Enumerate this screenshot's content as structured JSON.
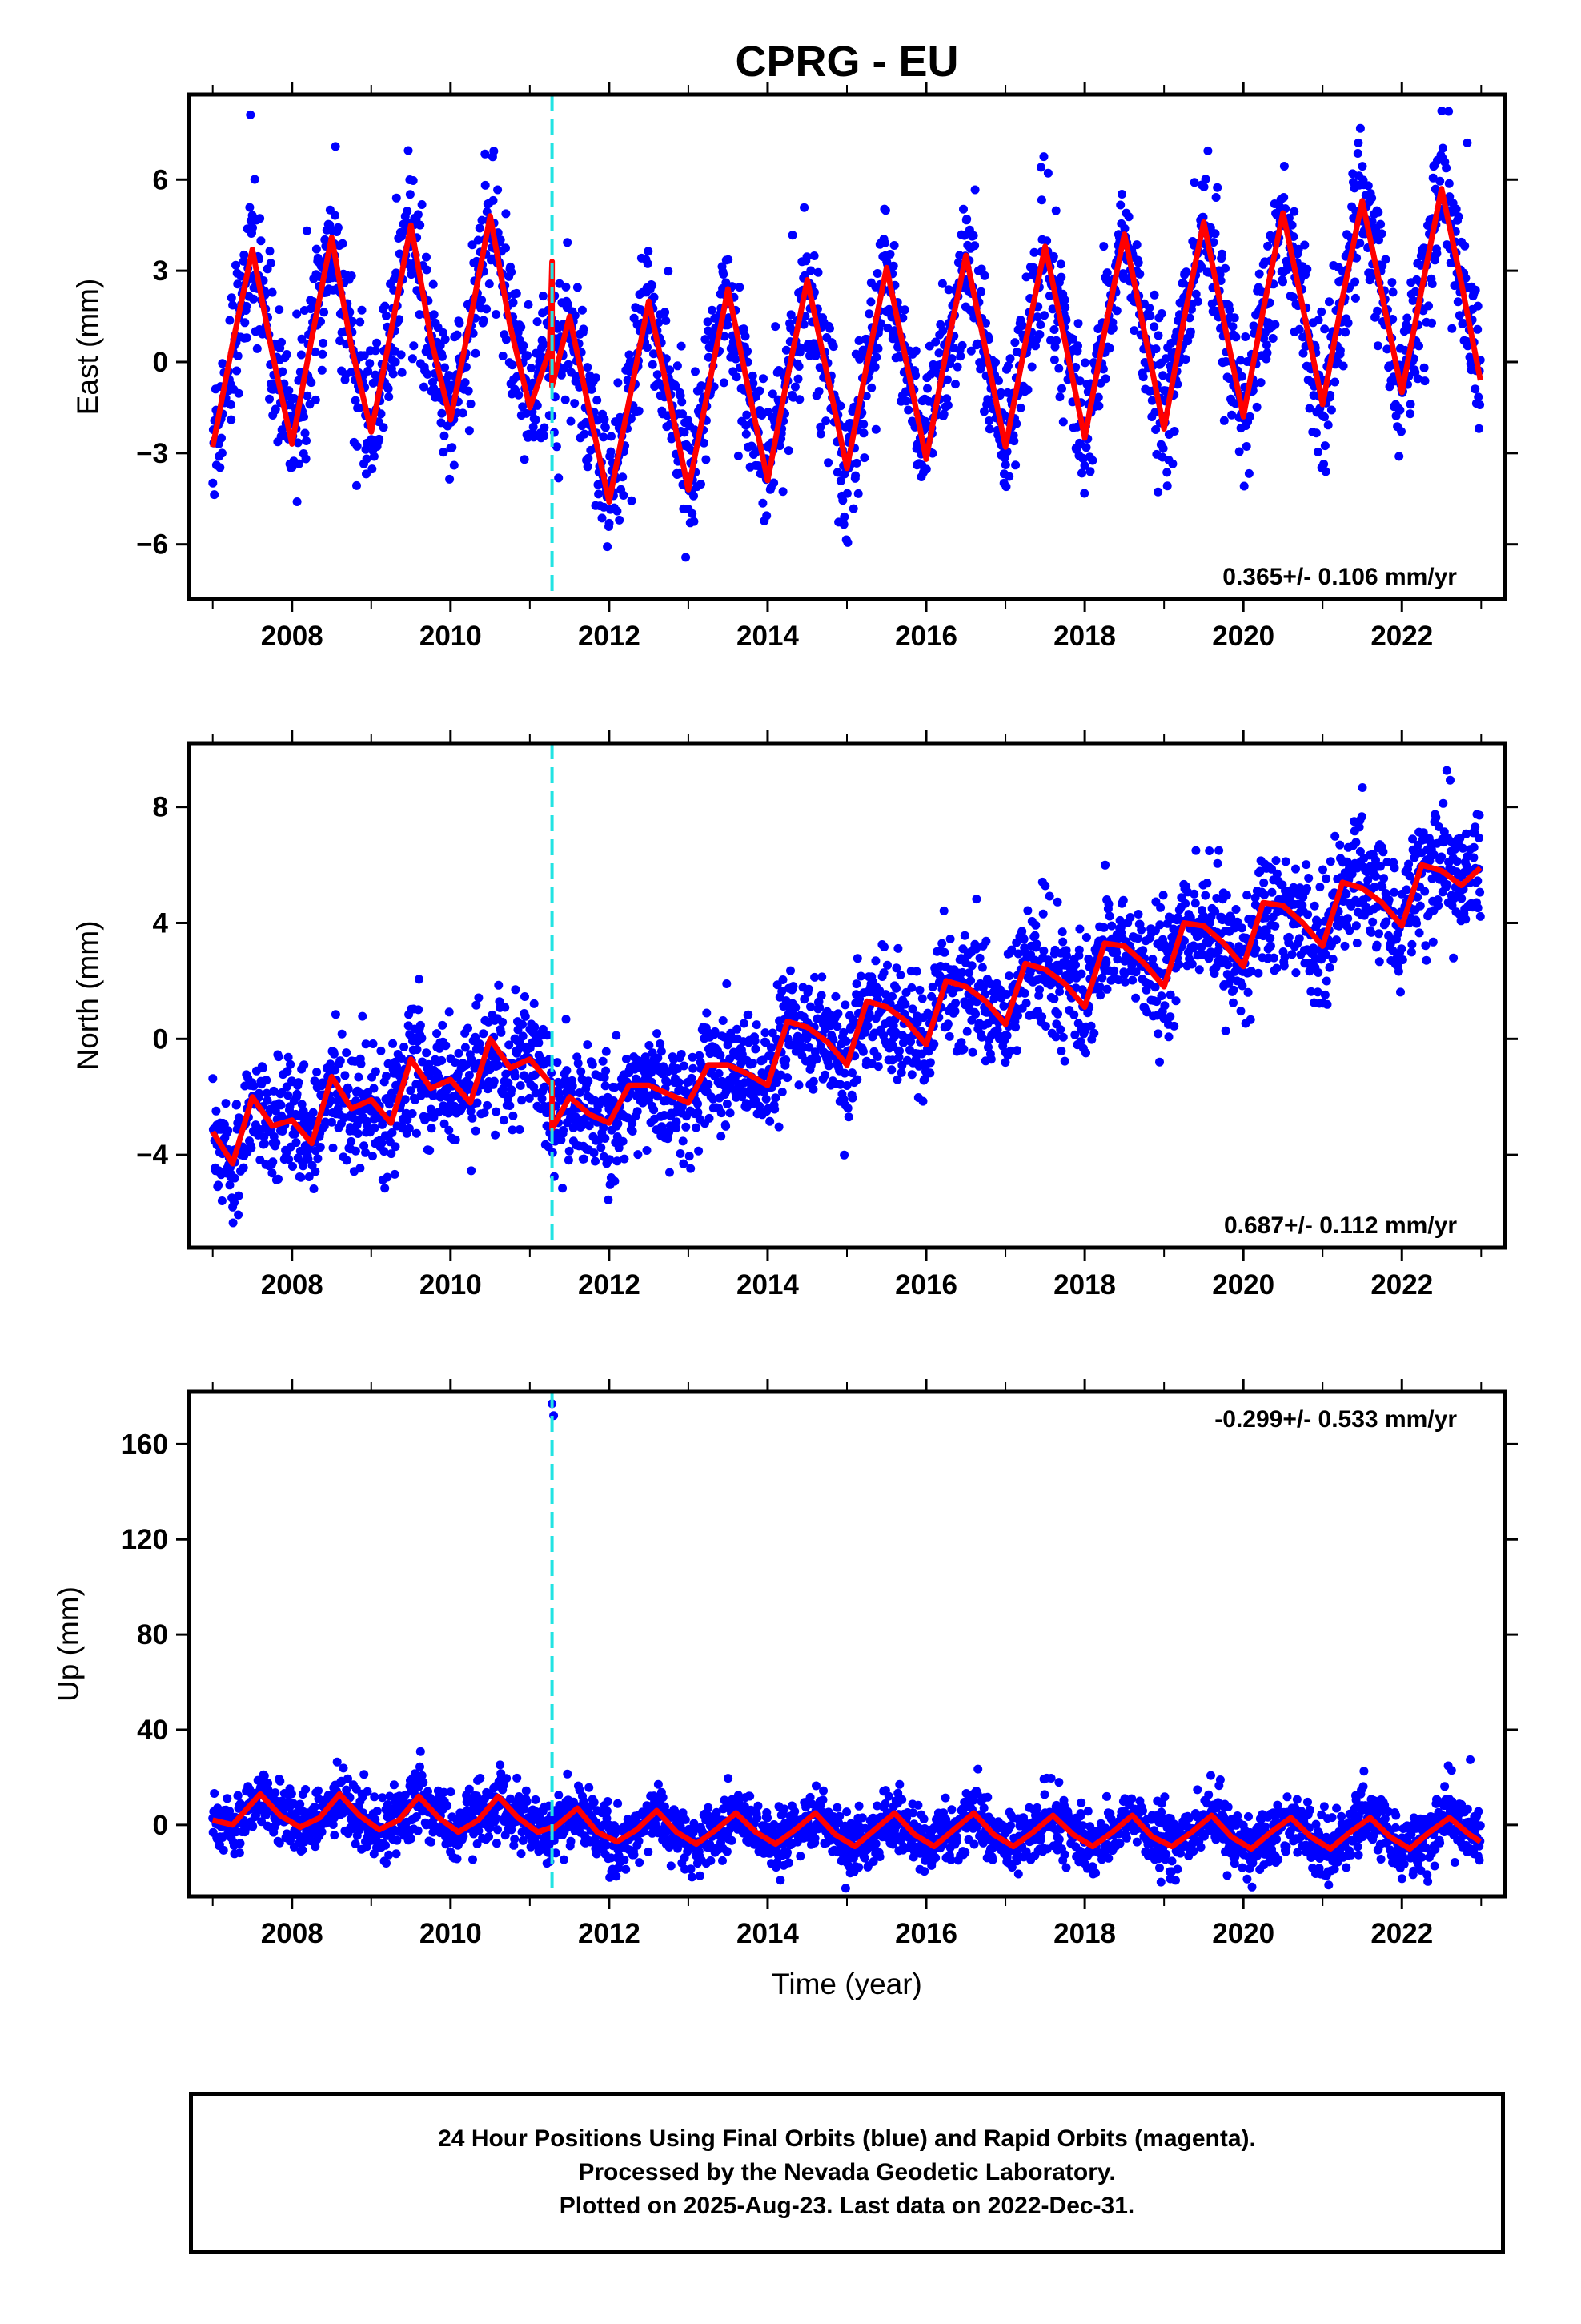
{
  "title": "CPRG - EU",
  "footer": {
    "line1": "24 Hour Positions Using Final Orbits (blue) and Rapid Orbits (magenta).",
    "line2": "Processed by the Nevada Geodetic Laboratory.",
    "line3": "Plotted on 2025-Aug-23. Last data on 2022-Dec-31."
  },
  "colors": {
    "points": "#0000ff",
    "model": "#ff0000",
    "event_line": "#22e3e3",
    "frame": "#000000"
  },
  "chart_data": [
    {
      "type": "scatter",
      "ylabel": "East (mm)",
      "xlabel": "",
      "xlim": [
        2006.7,
        2023.3
      ],
      "ylim": [
        -7.8,
        8.8
      ],
      "yticks": [
        -6,
        -3,
        0,
        3,
        6
      ],
      "ytick_labels": [
        "−6",
        "−3",
        "0",
        "3",
        "6"
      ],
      "xticks": [
        2008,
        2010,
        2012,
        2014,
        2016,
        2018,
        2020,
        2022
      ],
      "xtick_labels": [
        "2008",
        "2010",
        "2012",
        "2014",
        "2016",
        "2018",
        "2020",
        "2022"
      ],
      "rate_label": "0.365+/- 0.106 mm/yr",
      "rate_position": "bottom-right",
      "event_line_x": 2011.28,
      "data_range": [
        2007.0,
        2022.99
      ],
      "series": [
        {
          "kind": "model",
          "x": [
            2007.0,
            2007.25,
            2007.5,
            2007.75,
            2008.0,
            2008.25,
            2008.5,
            2008.75,
            2009.0,
            2009.25,
            2009.5,
            2009.75,
            2010.0,
            2010.25,
            2010.5,
            2010.75,
            2011.0,
            2011.25,
            2011.28,
            2011.28,
            2011.5,
            2011.75,
            2012.0,
            2012.25,
            2012.5,
            2012.75,
            2013.0,
            2013.25,
            2013.5,
            2013.75,
            2014.0,
            2014.25,
            2014.5,
            2014.75,
            2015.0,
            2015.25,
            2015.5,
            2015.75,
            2016.0,
            2016.25,
            2016.5,
            2016.75,
            2017.0,
            2017.25,
            2017.5,
            2017.75,
            2018.0,
            2018.25,
            2018.5,
            2018.75,
            2019.0,
            2019.25,
            2019.5,
            2019.75,
            2020.0,
            2020.25,
            2020.5,
            2020.75,
            2021.0,
            2021.25,
            2021.5,
            2021.75,
            2022.0,
            2022.25,
            2022.5,
            2022.75,
            2022.99
          ],
          "y": [
            -2.8,
            0.6,
            3.7,
            0.3,
            -2.7,
            0.8,
            4.1,
            0.5,
            -2.3,
            1.0,
            4.5,
            0.8,
            -1.9,
            1.4,
            4.8,
            1.2,
            -1.5,
            0.4,
            3.3,
            -0.8,
            1.5,
            -1.6,
            -4.6,
            -1.3,
            2.0,
            -1.1,
            -4.2,
            -0.9,
            2.4,
            -0.8,
            -3.9,
            -0.5,
            2.7,
            -0.4,
            -3.5,
            -0.1,
            3.1,
            0.0,
            -3.2,
            0.3,
            3.5,
            0.4,
            -2.8,
            0.6,
            3.8,
            0.7,
            -2.5,
            1.0,
            4.2,
            1.0,
            -2.2,
            1.4,
            4.6,
            1.4,
            -1.8,
            1.7,
            4.9,
            1.8,
            -1.4,
            2.1,
            5.3,
            2.2,
            -1.0,
            2.4,
            5.7,
            2.6,
            -0.6
          ]
        }
      ]
    },
    {
      "type": "scatter",
      "ylabel": "North (mm)",
      "xlabel": "",
      "xlim": [
        2006.7,
        2023.3
      ],
      "ylim": [
        -7.2,
        10.2
      ],
      "yticks": [
        -4,
        0,
        4,
        8
      ],
      "ytick_labels": [
        "−4",
        "0",
        "4",
        "8"
      ],
      "xticks": [
        2008,
        2010,
        2012,
        2014,
        2016,
        2018,
        2020,
        2022
      ],
      "xtick_labels": [
        "2008",
        "2010",
        "2012",
        "2014",
        "2016",
        "2018",
        "2020",
        "2022"
      ],
      "rate_label": "0.687+/- 0.112 mm/yr",
      "rate_position": "bottom-right",
      "event_line_x": 2011.28,
      "data_range": [
        2007.0,
        2022.99
      ],
      "series": [
        {
          "kind": "model",
          "x": [
            2007.0,
            2007.25,
            2007.5,
            2007.75,
            2008.0,
            2008.25,
            2008.5,
            2008.75,
            2009.0,
            2009.25,
            2009.5,
            2009.75,
            2010.0,
            2010.25,
            2010.5,
            2010.75,
            2011.0,
            2011.25,
            2011.28,
            2011.28,
            2011.5,
            2011.75,
            2012.0,
            2012.25,
            2012.5,
            2012.75,
            2013.0,
            2013.25,
            2013.5,
            2013.75,
            2014.0,
            2014.25,
            2014.5,
            2014.75,
            2015.0,
            2015.25,
            2015.5,
            2015.75,
            2016.0,
            2016.25,
            2016.5,
            2016.75,
            2017.0,
            2017.25,
            2017.5,
            2017.75,
            2018.0,
            2018.25,
            2018.5,
            2018.75,
            2019.0,
            2019.25,
            2019.5,
            2019.75,
            2020.0,
            2020.25,
            2020.5,
            2020.75,
            2021.0,
            2021.25,
            2021.5,
            2021.75,
            2022.0,
            2022.25,
            2022.5,
            2022.75,
            2022.99
          ],
          "y": [
            -3.2,
            -4.3,
            -2.0,
            -3.0,
            -2.8,
            -3.6,
            -1.3,
            -2.4,
            -2.1,
            -2.9,
            -0.7,
            -1.7,
            -1.4,
            -2.2,
            0.0,
            -1.0,
            -0.7,
            -1.5,
            -1.5,
            -3.1,
            -2.0,
            -2.6,
            -2.9,
            -1.6,
            -1.6,
            -1.9,
            -2.2,
            -0.9,
            -0.9,
            -1.2,
            -1.6,
            0.6,
            0.4,
            -0.1,
            -0.9,
            1.3,
            1.1,
            0.6,
            -0.2,
            2.0,
            1.8,
            1.3,
            0.5,
            2.6,
            2.4,
            1.9,
            1.1,
            3.3,
            3.2,
            2.6,
            1.8,
            4.0,
            3.9,
            3.3,
            2.5,
            4.7,
            4.6,
            4.0,
            3.2,
            5.4,
            5.2,
            4.7,
            3.9,
            6.0,
            5.8,
            5.3,
            5.9
          ]
        }
      ]
    },
    {
      "type": "scatter",
      "ylabel": "Up (mm)",
      "xlabel": "Time (year)",
      "xlim": [
        2006.7,
        2023.3
      ],
      "ylim": [
        -30,
        182
      ],
      "yticks": [
        0,
        40,
        80,
        120,
        160
      ],
      "ytick_labels": [
        "0",
        "40",
        "80",
        "120",
        "160"
      ],
      "xticks": [
        2008,
        2010,
        2012,
        2014,
        2016,
        2018,
        2020,
        2022
      ],
      "xtick_labels": [
        "2008",
        "2010",
        "2012",
        "2014",
        "2016",
        "2018",
        "2020",
        "2022"
      ],
      "rate_label": "-0.299+/- 0.533 mm/yr",
      "rate_position": "top-right",
      "event_line_x": 2011.28,
      "data_range": [
        2007.0,
        2022.99
      ],
      "outliers": [
        {
          "x": 2011.28,
          "y": 177
        },
        {
          "x": 2011.3,
          "y": 172
        }
      ],
      "series": [
        {
          "kind": "model",
          "x": [
            2007.0,
            2007.25,
            2007.6,
            2007.85,
            2008.1,
            2008.35,
            2008.6,
            2008.85,
            2009.1,
            2009.35,
            2009.6,
            2009.85,
            2010.1,
            2010.35,
            2010.6,
            2010.85,
            2011.1,
            2011.28,
            2011.28,
            2011.6,
            2011.85,
            2012.1,
            2012.35,
            2012.6,
            2012.85,
            2013.1,
            2013.35,
            2013.6,
            2013.85,
            2014.1,
            2014.35,
            2014.6,
            2014.85,
            2015.1,
            2015.35,
            2015.6,
            2015.85,
            2016.1,
            2016.35,
            2016.6,
            2016.85,
            2017.1,
            2017.35,
            2017.6,
            2017.85,
            2018.1,
            2018.35,
            2018.6,
            2018.85,
            2019.1,
            2019.35,
            2019.6,
            2019.85,
            2020.1,
            2020.35,
            2020.6,
            2020.85,
            2021.1,
            2021.35,
            2021.6,
            2021.85,
            2022.1,
            2022.35,
            2022.6,
            2022.85,
            2022.99
          ],
          "y": [
            2,
            0,
            13,
            4,
            -1,
            3,
            13,
            4,
            -2,
            2,
            12,
            3,
            -3,
            2,
            12,
            3,
            -3,
            -1,
            -2,
            7,
            -3,
            -7,
            -2,
            6,
            -3,
            -8,
            -2,
            5,
            -3,
            -8,
            -2,
            5,
            -4,
            -9,
            -2,
            5,
            -4,
            -9,
            -2,
            5,
            -4,
            -9,
            -3,
            4,
            -4,
            -9,
            -3,
            4,
            -5,
            -9,
            -3,
            4,
            -5,
            -10,
            -3,
            3,
            -5,
            -10,
            -3,
            3,
            -5,
            -10,
            -3,
            3,
            -4,
            -7
          ]
        }
      ]
    }
  ]
}
